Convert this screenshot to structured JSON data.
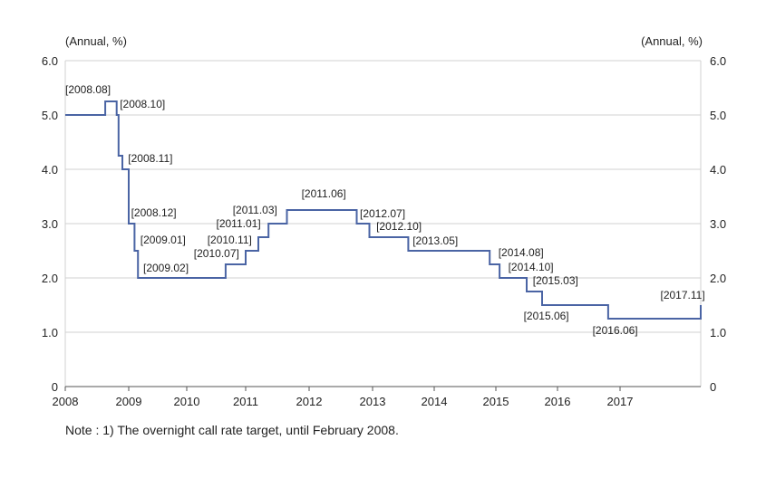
{
  "chart_data": {
    "type": "line",
    "step": true,
    "y_unit_left": "(Annual, %)",
    "y_unit_right": "(Annual, %)",
    "ylim": [
      0,
      6
    ],
    "xlim": [
      2008.0,
      2018.4
    ],
    "y_ticks": [
      "0",
      "1.0",
      "2.0",
      "3.0",
      "4.0",
      "5.0",
      "6.0"
    ],
    "x_ticks": [
      "2008",
      "2009",
      "2010",
      "2011",
      "2012",
      "2013",
      "2014",
      "2015",
      "2016",
      "2017"
    ],
    "grid": "horizontal",
    "line_color": "#4a64a4",
    "points": [
      {
        "x": 2008.0,
        "y": 5.0
      },
      {
        "x": 2008.63,
        "y": 5.25
      },
      {
        "x": 2008.81,
        "y": 5.0
      },
      {
        "x": 2008.84,
        "y": 4.25
      },
      {
        "x": 2008.9,
        "y": 4.0
      },
      {
        "x": 2009.0,
        "y": 3.0
      },
      {
        "x": 2009.1,
        "y": 2.5
      },
      {
        "x": 2009.16,
        "y": 2.0
      },
      {
        "x": 2010.66,
        "y": 2.25
      },
      {
        "x": 2011.0,
        "y": 2.5
      },
      {
        "x": 2011.2,
        "y": 2.75
      },
      {
        "x": 2011.36,
        "y": 3.0
      },
      {
        "x": 2011.65,
        "y": 3.25
      },
      {
        "x": 2012.75,
        "y": 3.0
      },
      {
        "x": 2012.95,
        "y": 2.75
      },
      {
        "x": 2013.58,
        "y": 2.5
      },
      {
        "x": 2014.9,
        "y": 2.25
      },
      {
        "x": 2015.06,
        "y": 2.0
      },
      {
        "x": 2015.5,
        "y": 1.75
      },
      {
        "x": 2015.75,
        "y": 1.5
      },
      {
        "x": 2016.81,
        "y": 1.25
      },
      {
        "x": 2018.4,
        "y": 1.5
      }
    ],
    "annotations": [
      {
        "text": "[2008.08]",
        "x": 2008.0,
        "y": 5.4
      },
      {
        "text": "[2008.10]",
        "x": 2008.86,
        "y": 5.13
      },
      {
        "text": "[2008.11]",
        "x": 2008.99,
        "y": 4.13
      },
      {
        "text": "[2008.12]",
        "x": 2009.04,
        "y": 3.13
      },
      {
        "text": "[2009.01]",
        "x": 2009.2,
        "y": 2.63
      },
      {
        "text": "[2009.02]",
        "x": 2009.25,
        "y": 2.12
      },
      {
        "text": "[2010.07]",
        "x": 2010.12,
        "y": 2.38
      },
      {
        "text": "[2010.11]",
        "x": 2010.35,
        "y": 2.63
      },
      {
        "text": "[2011.01]",
        "x": 2010.5,
        "y": 2.93
      },
      {
        "text": "[2011.03]",
        "x": 2010.78,
        "y": 3.18
      },
      {
        "text": "[2011.06]",
        "x": 2011.88,
        "y": 3.48
      },
      {
        "text": "[2012.07]",
        "x": 2012.8,
        "y": 3.12
      },
      {
        "text": "[2012.10]",
        "x": 2013.06,
        "y": 2.88
      },
      {
        "text": "[2013.05]",
        "x": 2013.65,
        "y": 2.62
      },
      {
        "text": "[2014.08]",
        "x": 2015.04,
        "y": 2.4
      },
      {
        "text": "[2014.10]",
        "x": 2015.2,
        "y": 2.13
      },
      {
        "text": "[2015.03]",
        "x": 2015.6,
        "y": 1.88
      },
      {
        "text": "[2015.06]",
        "x": 2015.45,
        "y": 1.23
      },
      {
        "text": "[2016.06]",
        "x": 2016.56,
        "y": 0.97
      },
      {
        "text": "[2017.11]",
        "x": 2017.7,
        "y": 1.62
      }
    ]
  },
  "note": "Note : 1) The overnight call rate target, until February 2008."
}
